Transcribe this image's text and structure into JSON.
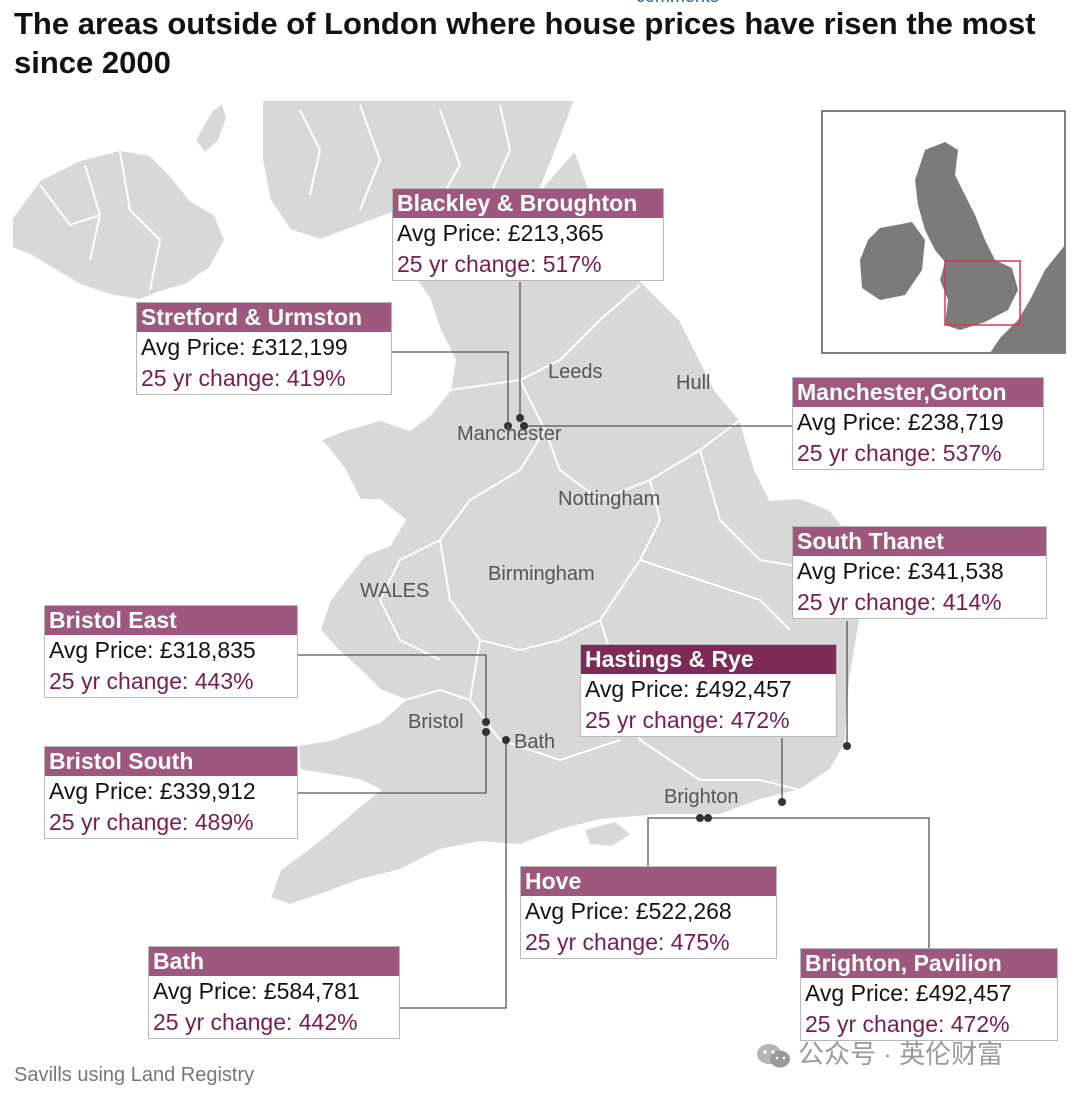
{
  "title": "The areas outside of London where house prices have risen the most since 2000",
  "cut_link_text": "comments",
  "source": "Savills using Land Registry",
  "watermark": "公众号 · 英伦财富",
  "colors": {
    "header": "#9e587e",
    "header_dark": "#7d2b56",
    "change_text": "#7a1c4f",
    "land": "#d8d8d8",
    "inset_highlight": "#e0344b"
  },
  "cities": {
    "leeds": "Leeds",
    "hull": "Hull",
    "manchester": "Manchester",
    "nottingham": "Nottingham",
    "birmingham": "Birmingham",
    "wales": "WALES",
    "bristol": "Bristol",
    "bath": "Bath",
    "brighton": "Brighton"
  },
  "areas": {
    "blackley": {
      "name": "Blackley & Broughton",
      "price": "Avg Price: £213,365",
      "change": "25 yr change: 517%"
    },
    "stretford": {
      "name": "Stretford & Urmston",
      "price": "Avg Price: £312,199",
      "change": "25 yr change: 419%"
    },
    "gorton": {
      "name": "Manchester,Gorton",
      "price": "Avg Price: £238,719",
      "change": "25 yr change: 537%"
    },
    "thanet": {
      "name": "South Thanet",
      "price": "Avg Price: £341,538",
      "change": "25 yr change: 414%"
    },
    "bristol_east": {
      "name": "Bristol East",
      "price": "Avg Price: £318,835",
      "change": "25 yr change: 443%"
    },
    "hastings": {
      "name": "Hastings & Rye",
      "price": "Avg Price: £492,457",
      "change": "25 yr change: 472%"
    },
    "bristol_south": {
      "name": "Bristol South",
      "price": "Avg Price: £339,912",
      "change": "25 yr change: 489%"
    },
    "hove": {
      "name": "Hove",
      "price": "Avg Price: £522,268",
      "change": "25 yr change: 475%"
    },
    "bath": {
      "name": "Bath",
      "price": "Avg Price: £584,781",
      "change": "25 yr change: 442%"
    },
    "pavilion": {
      "name": "Brighton, Pavilion",
      "price": "Avg Price: £492,457",
      "change": "25 yr change: 472%"
    }
  }
}
